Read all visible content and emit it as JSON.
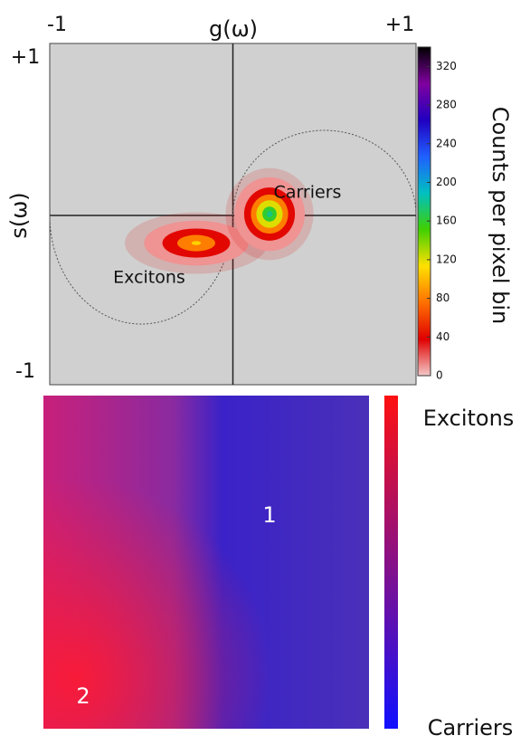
{
  "chart_data": [
    {
      "type": "phasor-histogram",
      "x_label": "g(ω)",
      "y_label": "s(ω)",
      "xlim": [
        -1,
        1
      ],
      "ylim": [
        -1,
        1
      ],
      "xticks": [
        -1,
        {
          "value": 1,
          "label": "+1"
        }
      ],
      "yticks": [
        -1,
        {
          "value": 1,
          "label": "+1"
        }
      ],
      "annotations": [
        "Excitons",
        "Carriers"
      ],
      "clusters": [
        {
          "name": "Excitons",
          "g": -0.2,
          "s": -0.17,
          "g_spread": 0.13,
          "s_spread": 0.06,
          "peak": 110
        },
        {
          "name": "Carriers",
          "g": 0.2,
          "s": 0.0,
          "g_spread": 0.08,
          "s_spread": 0.09,
          "peak": 180
        }
      ],
      "colorbar": {
        "label": "Counts per pixel bin",
        "lim": [
          0,
          340
        ],
        "ticks": [
          0,
          40,
          80,
          120,
          160,
          200,
          240,
          280,
          320
        ],
        "colors": [
          "#f4c8c8",
          "#e00000",
          "#ff7000",
          "#ffe000",
          "#40d000",
          "#00c0c0",
          "#2060ff",
          "#2000c0",
          "#8000a0",
          "#000000"
        ]
      }
    },
    {
      "type": "image-map",
      "annotations": [
        "1",
        "2"
      ],
      "colorbar": {
        "labels": [
          "Excitons",
          "Carriers"
        ],
        "colors": [
          "#ff1010",
          "#1010ff"
        ]
      }
    }
  ]
}
